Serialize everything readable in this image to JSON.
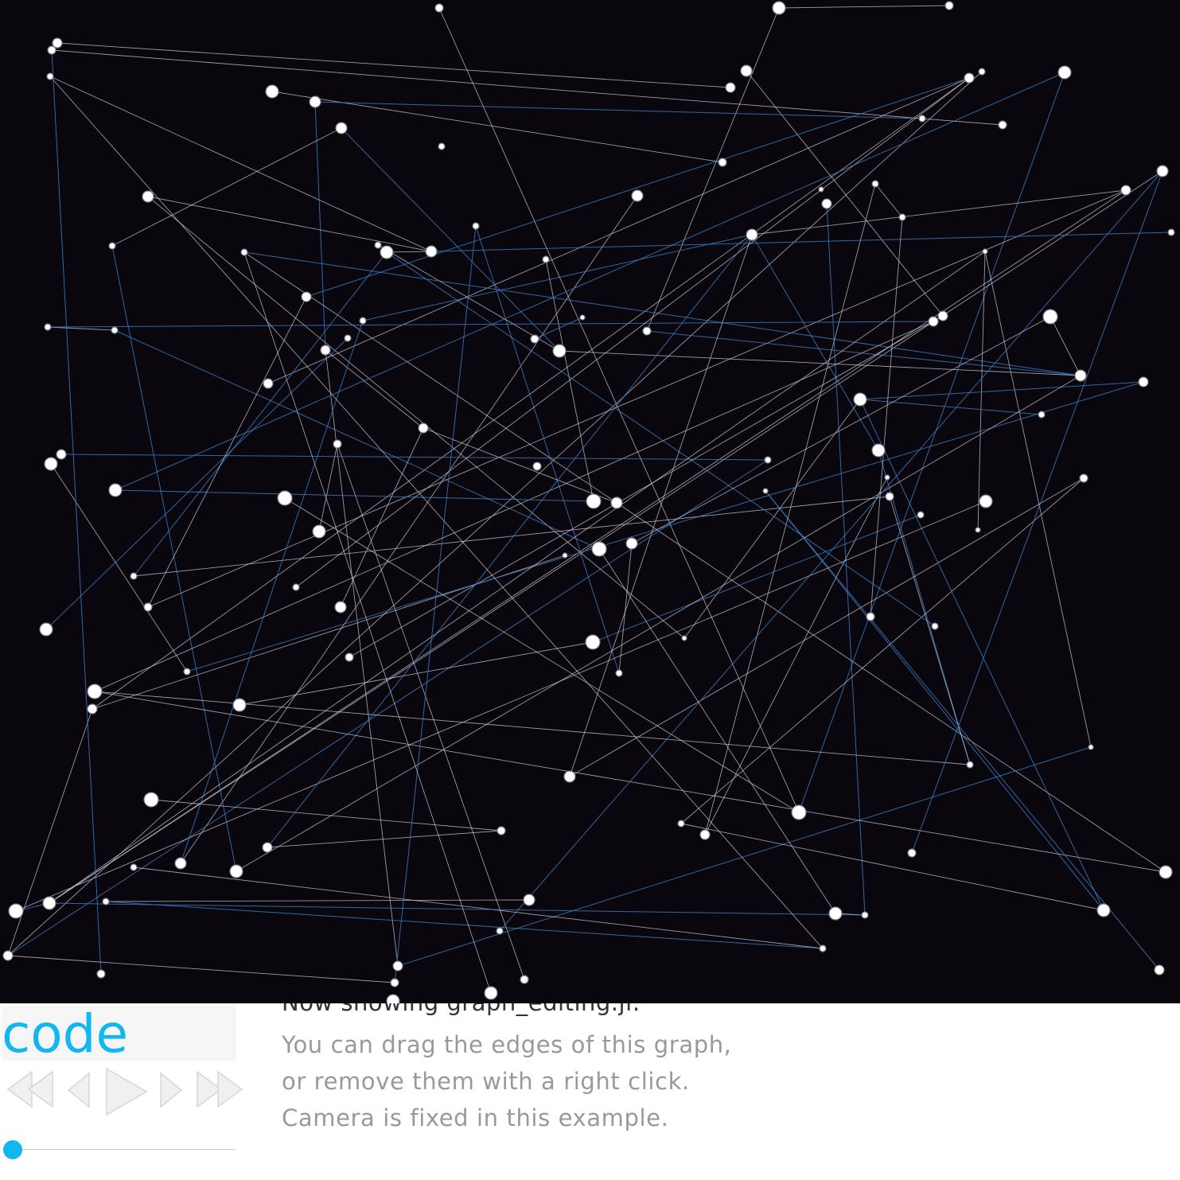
{
  "code_button": {
    "label": "code"
  },
  "info": {
    "title": "Now showing graph_editing.jl:",
    "lines": [
      "You can drag the edges of this graph,",
      "or remove them with a right click.",
      "Camera is fixed in this example."
    ]
  },
  "controls": {
    "icons": [
      "skip-to-start-icon",
      "step-back-icon",
      "play-icon",
      "step-forward-icon",
      "skip-to-end-icon"
    ],
    "slider_progress": 0
  },
  "colors": {
    "background": "#09060d",
    "node_fill": "#ffffff",
    "edge_white": "#c8cdd8",
    "edge_blue": "#3d7fc4",
    "accent": "#11b7ef"
  }
}
